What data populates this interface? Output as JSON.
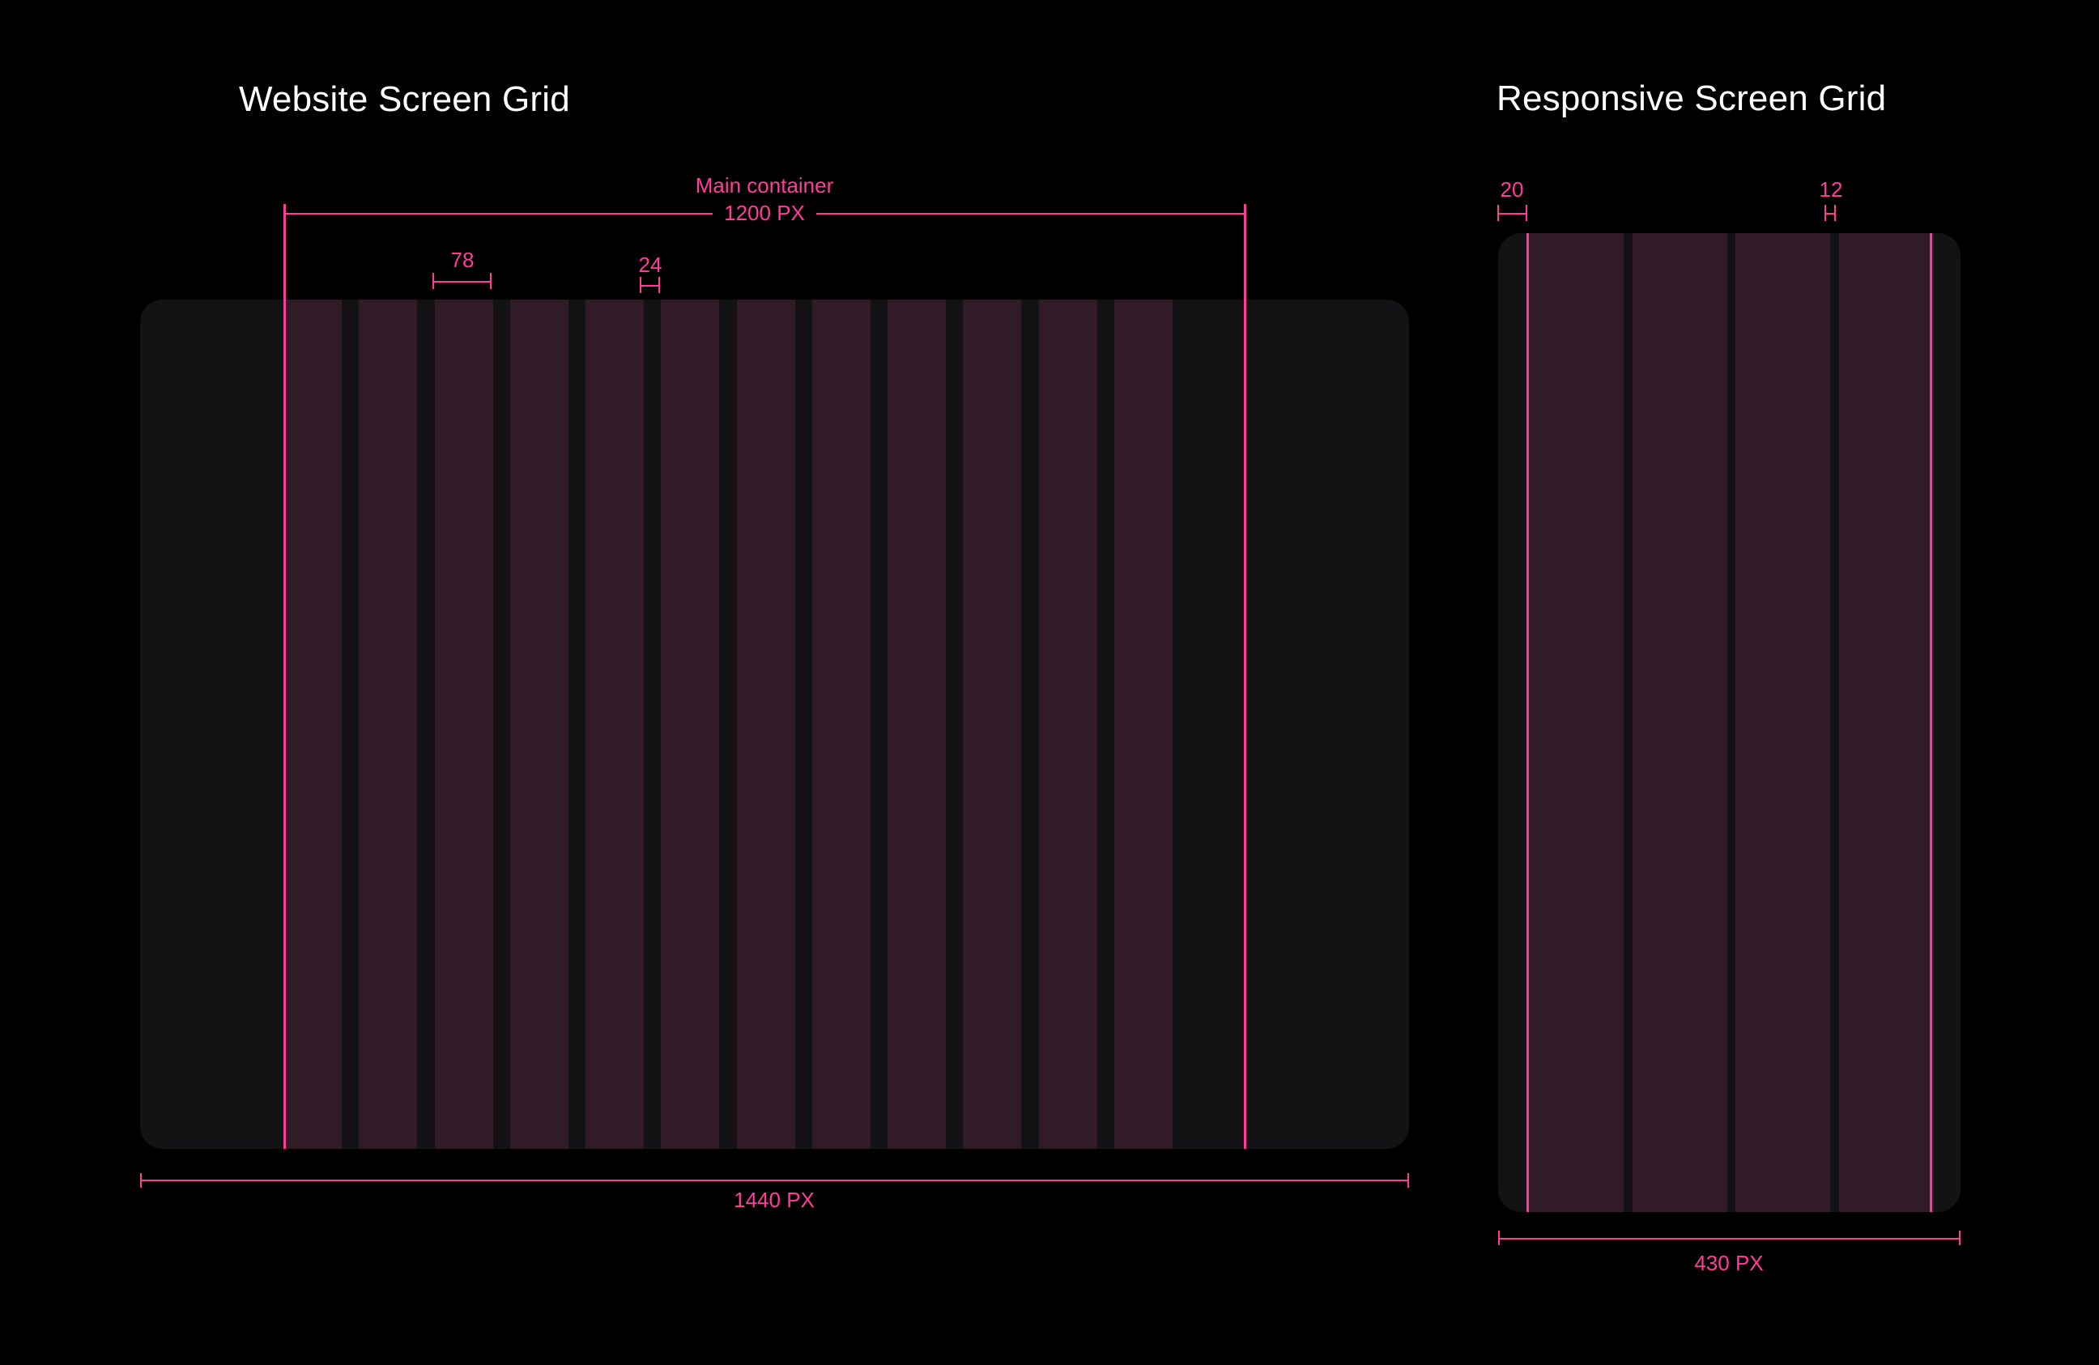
{
  "colors": {
    "background": "#000000",
    "frame": "#131215",
    "column": "#301b27",
    "accent": "#ff3c9b",
    "heading_text": "#ffffff"
  },
  "website_grid": {
    "title": "Website Screen Grid",
    "container_label": "Main container",
    "container_width_label": "1200 PX",
    "column_width_label": "78",
    "gutter_width_label": "24",
    "screen_width_label": "1440 PX",
    "column_count": 12
  },
  "responsive_grid": {
    "title": "Responsive Screen Grid",
    "margin_label": "20",
    "gutter_label": "12",
    "screen_width_label": "430 PX",
    "column_count": 4
  }
}
